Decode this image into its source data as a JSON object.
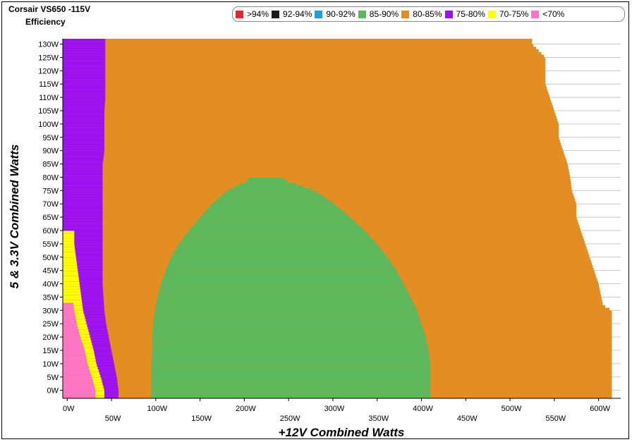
{
  "chart_data": {
    "type": "heatmap",
    "title": "Corsair VS650 -115V",
    "subtitle": "Efficiency",
    "xlabel": "+12V Combined Watts",
    "ylabel": "5 & 3.3V Combined Watts",
    "xlim": [
      -5,
      625
    ],
    "ylim": [
      -3,
      132
    ],
    "x_ticks": [
      "0W",
      "50W",
      "100W",
      "150W",
      "200W",
      "250W",
      "300W",
      "350W",
      "400W",
      "450W",
      "500W",
      "550W",
      "600W"
    ],
    "y_ticks": [
      "0W",
      "5W",
      "10W",
      "15W",
      "20W",
      "25W",
      "30W",
      "35W",
      "40W",
      "45W",
      "50W",
      "55W",
      "60W",
      "65W",
      "70W",
      "75W",
      "80W",
      "85W",
      "90W",
      "95W",
      "100W",
      "105W",
      "110W",
      "115W",
      "120W",
      "125W",
      "130W"
    ],
    "grid": true,
    "legend": {
      "position": "top-right",
      "entries": [
        {
          "label": ">94%",
          "color": "#e5262d"
        },
        {
          "label": "92-94%",
          "color": "#1a1a1a"
        },
        {
          "label": "90-92%",
          "color": "#1ea0d8"
        },
        {
          "label": "85-90%",
          "color": "#5cb85c"
        },
        {
          "label": "80-85%",
          "color": "#e38d22"
        },
        {
          "label": "75-80%",
          "color": "#9b11f2"
        },
        {
          "label": "70-75%",
          "color": "#ffff00"
        },
        {
          "label": "<70%",
          "color": "#ff74c6"
        }
      ]
    },
    "regions": {
      "max_load_boundary": [
        [
          0,
          615
        ],
        [
          10,
          615
        ],
        [
          20,
          615
        ],
        [
          30,
          615
        ],
        [
          32,
          605
        ],
        [
          40,
          600
        ],
        [
          45,
          595
        ],
        [
          50,
          590
        ],
        [
          55,
          585
        ],
        [
          60,
          580
        ],
        [
          65,
          575
        ],
        [
          70,
          575
        ],
        [
          75,
          570
        ],
        [
          80,
          568
        ],
        [
          85,
          565
        ],
        [
          90,
          560
        ],
        [
          95,
          555
        ],
        [
          100,
          555
        ],
        [
          105,
          550
        ],
        [
          110,
          545
        ],
        [
          115,
          540
        ],
        [
          120,
          540
        ],
        [
          125,
          540
        ],
        [
          130,
          525
        ],
        [
          132,
          525
        ]
      ],
      "band_80_85_start": [
        [
          0,
          58
        ],
        [
          5,
          56
        ],
        [
          10,
          53
        ],
        [
          15,
          50
        ],
        [
          20,
          47
        ],
        [
          25,
          44
        ],
        [
          30,
          42
        ],
        [
          35,
          41
        ],
        [
          40,
          40
        ],
        [
          45,
          40
        ],
        [
          50,
          40
        ],
        [
          55,
          40
        ],
        [
          60,
          40
        ],
        [
          65,
          40
        ],
        [
          70,
          40
        ],
        [
          75,
          40
        ],
        [
          80,
          40
        ],
        [
          85,
          40
        ],
        [
          90,
          42
        ],
        [
          95,
          42
        ],
        [
          100,
          42
        ],
        [
          105,
          42
        ],
        [
          110,
          43
        ],
        [
          115,
          43
        ],
        [
          120,
          43
        ],
        [
          125,
          43
        ],
        [
          130,
          43
        ]
      ],
      "band_75_80_start": [
        [
          0,
          42
        ],
        [
          5,
          38
        ],
        [
          10,
          33
        ],
        [
          15,
          30
        ],
        [
          20,
          26
        ],
        [
          25,
          22
        ],
        [
          30,
          18
        ],
        [
          35,
          16
        ],
        [
          40,
          14
        ],
        [
          45,
          12
        ],
        [
          50,
          10
        ],
        [
          55,
          8
        ],
        [
          60,
          8
        ],
        [
          65,
          8
        ],
        [
          70,
          8
        ],
        [
          75,
          8
        ],
        [
          80,
          8
        ],
        [
          85,
          8
        ],
        [
          90,
          8
        ],
        [
          95,
          8
        ],
        [
          100,
          8
        ],
        [
          105,
          8
        ],
        [
          110,
          8
        ],
        [
          115,
          8
        ],
        [
          120,
          8
        ],
        [
          125,
          8
        ],
        [
          130,
          8
        ]
      ],
      "band_70_75_start": [
        [
          0,
          32
        ],
        [
          5,
          28
        ],
        [
          10,
          23
        ],
        [
          15,
          20
        ],
        [
          20,
          15
        ],
        [
          25,
          11
        ],
        [
          30,
          8
        ],
        [
          35,
          6
        ],
        [
          40,
          4
        ],
        [
          45,
          2
        ],
        [
          50,
          1
        ],
        [
          55,
          0
        ],
        [
          60,
          0
        ]
      ],
      "band_lt70_start": [
        [
          0,
          0
        ],
        [
          33,
          0
        ]
      ],
      "band_85_90": [
        {
          "y": 0,
          "x0": 95,
          "x1": 410
        },
        {
          "y": 5,
          "x0": 95,
          "x1": 410
        },
        {
          "y": 10,
          "x0": 95,
          "x1": 410
        },
        {
          "y": 15,
          "x0": 96,
          "x1": 408
        },
        {
          "y": 20,
          "x0": 96,
          "x1": 405
        },
        {
          "y": 25,
          "x0": 97,
          "x1": 400
        },
        {
          "y": 30,
          "x0": 99,
          "x1": 395
        },
        {
          "y": 35,
          "x0": 102,
          "x1": 388
        },
        {
          "y": 40,
          "x0": 106,
          "x1": 380
        },
        {
          "y": 45,
          "x0": 111,
          "x1": 372
        },
        {
          "y": 50,
          "x0": 117,
          "x1": 362
        },
        {
          "y": 55,
          "x0": 126,
          "x1": 350
        },
        {
          "y": 60,
          "x0": 137,
          "x1": 336
        },
        {
          "y": 65,
          "x0": 150,
          "x1": 320
        },
        {
          "y": 70,
          "x0": 163,
          "x1": 302
        },
        {
          "y": 75,
          "x0": 180,
          "x1": 280
        },
        {
          "y": 79,
          "x0": 205,
          "x1": 245
        }
      ]
    }
  }
}
